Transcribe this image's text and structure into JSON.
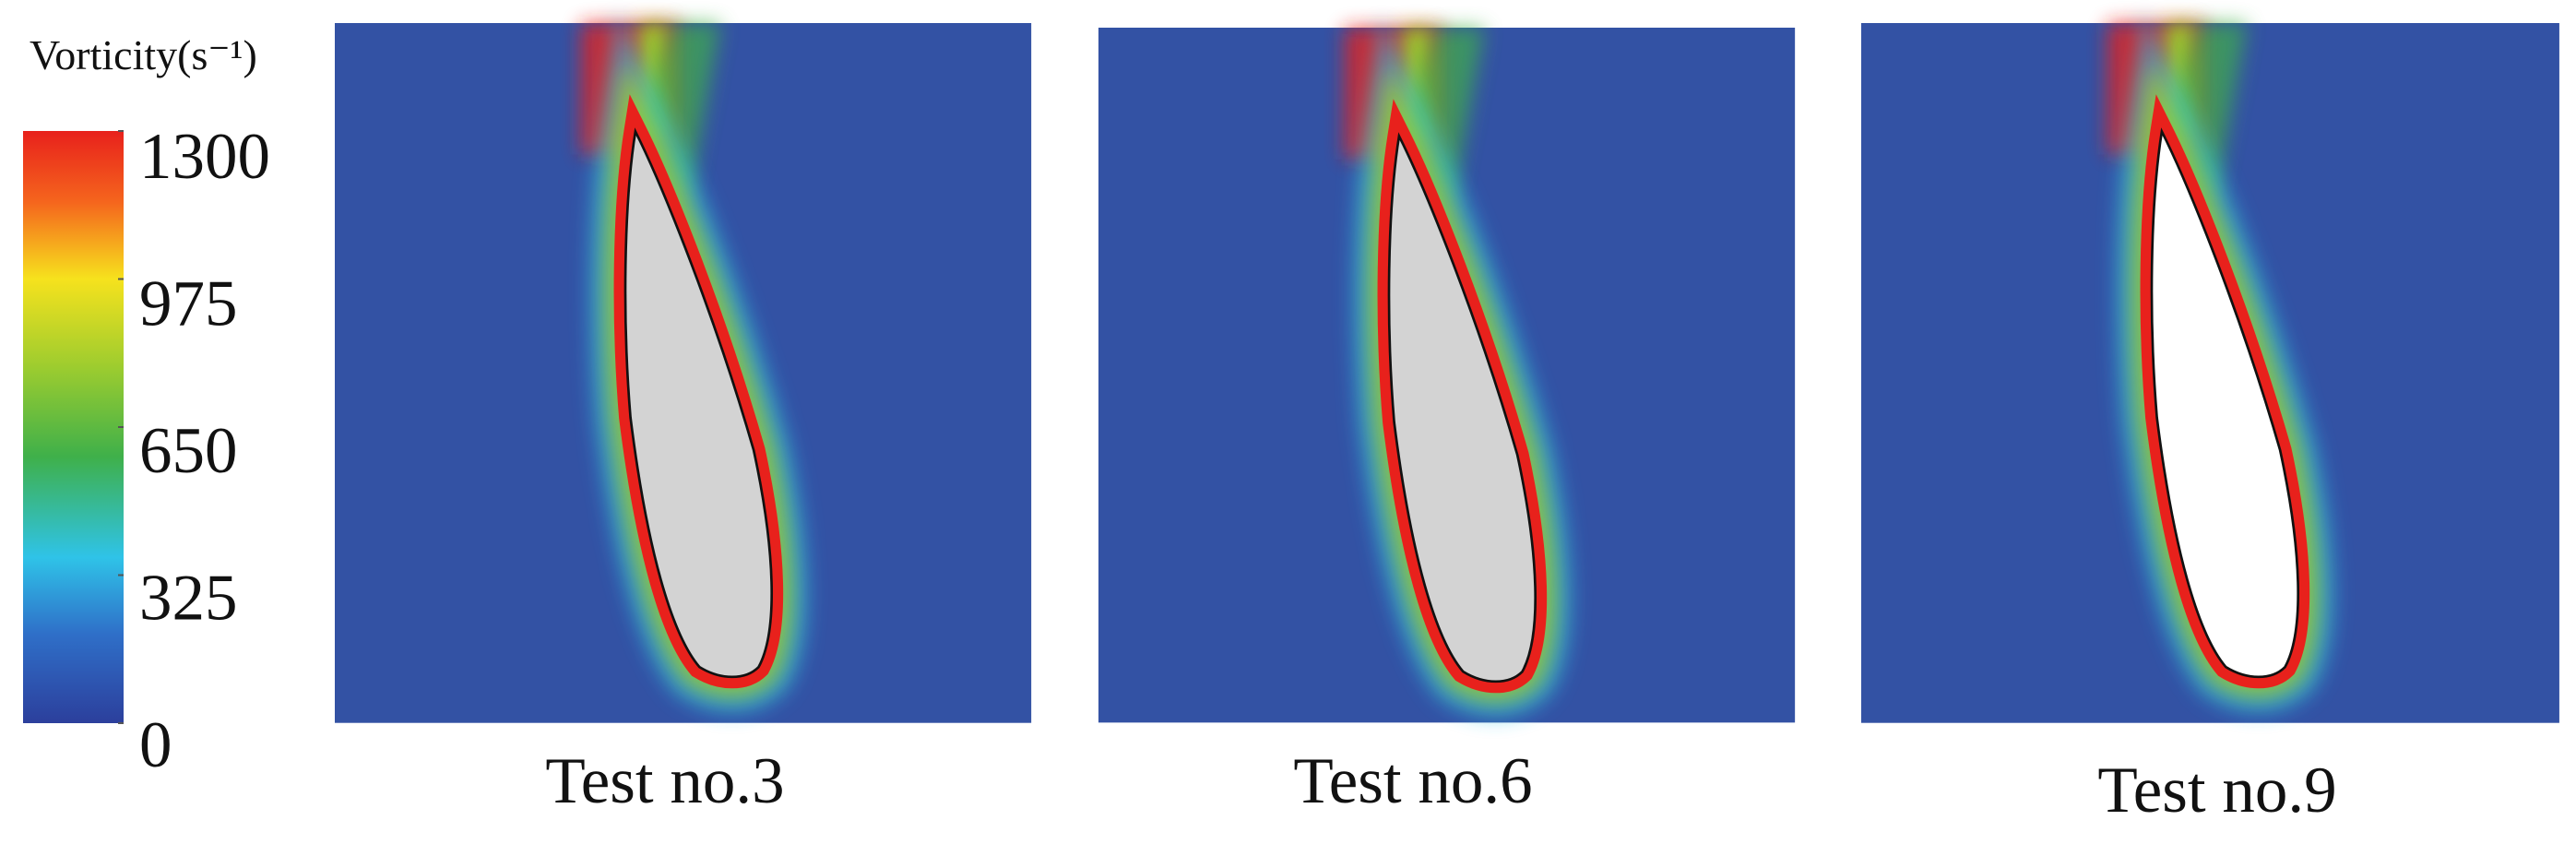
{
  "colorbar": {
    "label": "Vorticity(s⁻¹)",
    "ticks": [
      1300,
      975,
      650,
      325,
      0
    ]
  },
  "panels": [
    {
      "caption": "Test no.3"
    },
    {
      "caption": "Test no.6"
    },
    {
      "caption": "Test no.9"
    }
  ]
}
